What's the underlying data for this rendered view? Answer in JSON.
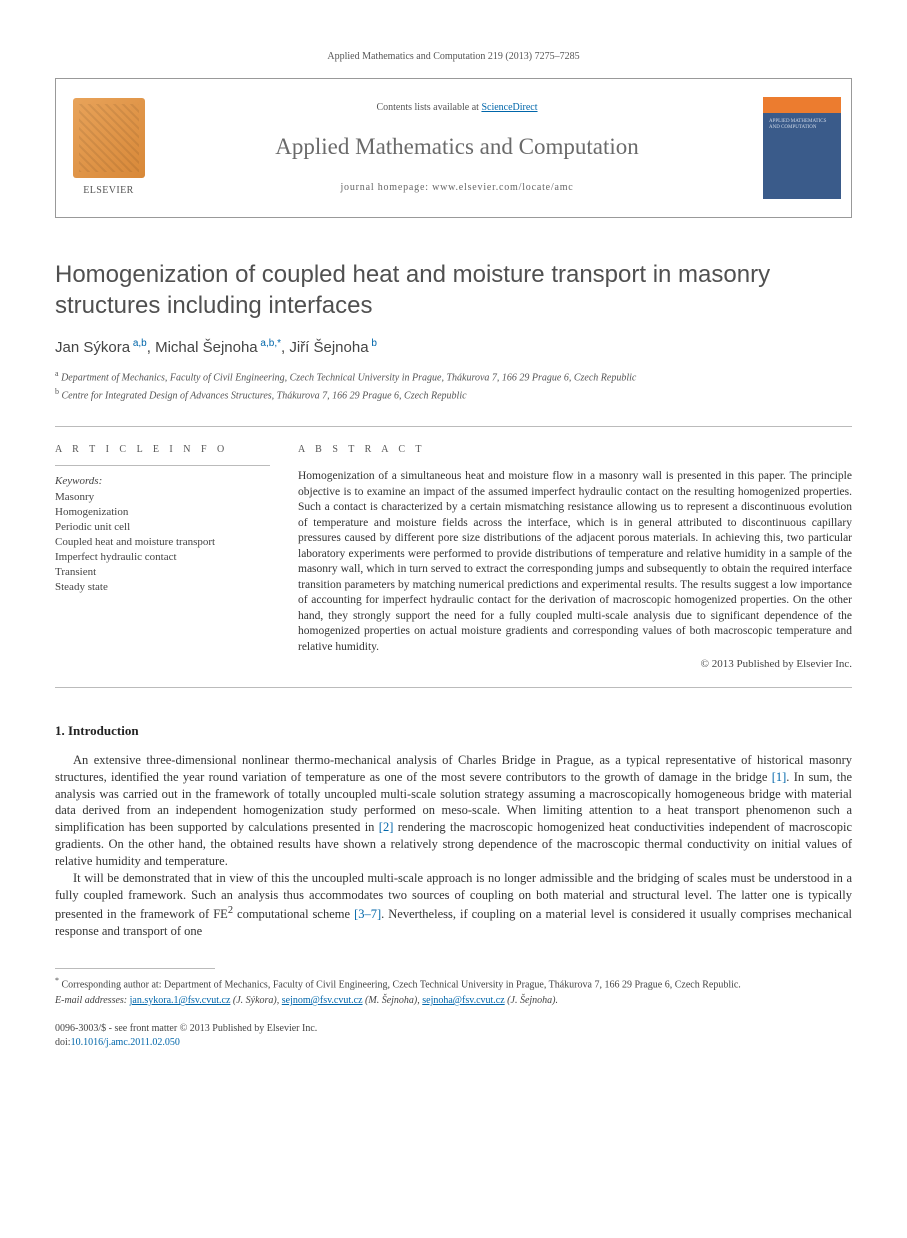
{
  "citation": "Applied Mathematics and Computation 219 (2013) 7275–7285",
  "header": {
    "contents_prefix": "Contents lists available at ",
    "contents_link": "ScienceDirect",
    "journal_title": "Applied Mathematics and Computation",
    "homepage_label": "journal homepage: www.elsevier.com/locate/amc",
    "publisher_label": "ELSEVIER",
    "cover_text": "APPLIED MATHEMATICS AND COMPUTATION"
  },
  "paper": {
    "title": "Homogenization of coupled heat and moisture transport in masonry structures including interfaces",
    "authors": [
      {
        "name": "Jan Sýkora",
        "affil": "a,b"
      },
      {
        "name": "Michal Šejnoha",
        "affil": "a,b,*"
      },
      {
        "name": "Jiří Šejnoha",
        "affil": "b"
      }
    ],
    "affiliations": [
      {
        "sup": "a",
        "text": "Department of Mechanics, Faculty of Civil Engineering, Czech Technical University in Prague, Thákurova 7, 166 29 Prague 6, Czech Republic"
      },
      {
        "sup": "b",
        "text": "Centre for Integrated Design of Advances Structures, Thákurova 7, 166 29 Prague 6, Czech Republic"
      }
    ]
  },
  "article_info": {
    "heading": "A R T I C L E   I N F O",
    "keywords_label": "Keywords:",
    "keywords": [
      "Masonry",
      "Homogenization",
      "Periodic unit cell",
      "Coupled heat and moisture transport",
      "Imperfect hydraulic contact",
      "Transient",
      "Steady state"
    ]
  },
  "abstract": {
    "heading": "A B S T R A C T",
    "text": "Homogenization of a simultaneous heat and moisture flow in a masonry wall is presented in this paper. The principle objective is to examine an impact of the assumed imperfect hydraulic contact on the resulting homogenized properties. Such a contact is characterized by a certain mismatching resistance allowing us to represent a discontinuous evolution of temperature and moisture fields across the interface, which is in general attributed to discontinuous capillary pressures caused by different pore size distributions of the adjacent porous materials. In achieving this, two particular laboratory experiments were performed to provide distributions of temperature and relative humidity in a sample of the masonry wall, which in turn served to extract the corresponding jumps and subsequently to obtain the required interface transition parameters by matching numerical predictions and experimental results. The results suggest a low importance of accounting for imperfect hydraulic contact for the derivation of macroscopic homogenized properties. On the other hand, they strongly support the need for a fully coupled multi-scale analysis due to significant dependence of the homogenized properties on actual moisture gradients and corresponding values of both macroscopic temperature and relative humidity.",
    "copyright": "© 2013 Published by Elsevier Inc."
  },
  "section1": {
    "heading": "1. Introduction",
    "para1_a": "An extensive three-dimensional nonlinear thermo-mechanical analysis of Charles Bridge in Prague, as a typical representative of historical masonry structures, identified the year round variation of temperature as one of the most severe contributors to the growth of damage in the bridge ",
    "ref1": "[1]",
    "para1_b": ". In sum, the analysis was carried out in the framework of totally uncoupled multi-scale solution strategy assuming a macroscopically homogeneous bridge with material data derived from an independent homogenization study performed on meso-scale. When limiting attention to a heat transport phenomenon such a simplification has been supported by calculations presented in ",
    "ref2": "[2]",
    "para1_c": " rendering the macroscopic homogenized heat conductivities independent of macroscopic gradients. On the other hand, the obtained results have shown a relatively strong dependence of the macroscopic thermal conductivity on initial values of relative humidity and temperature.",
    "para2_a": "It will be demonstrated that in view of this the uncoupled multi-scale approach is no longer admissible and the bridging of scales must be understood in a fully coupled framework. Such an analysis thus accommodates two sources of coupling on both material and structural level. The latter one is typically presented in the framework of FE",
    "para2_sup": "2",
    "para2_b": " computational scheme ",
    "ref3": "[3–7]",
    "para2_c": ". Nevertheless, if coupling on a material level is considered it usually comprises mechanical response and transport of one"
  },
  "footer": {
    "corr_star": "*",
    "corr_text": "Corresponding author at: Department of Mechanics, Faculty of Civil Engineering, Czech Technical University in Prague, Thákurova 7, 166 29 Prague 6, Czech Republic.",
    "email_label": "E-mail addresses: ",
    "emails": [
      {
        "addr": "jan.sykora.1@fsv.cvut.cz",
        "who": "(J. Sýkora)"
      },
      {
        "addr": "sejnom@fsv.cvut.cz",
        "who": "(M. Šejnoha)"
      },
      {
        "addr": "sejnoha@fsv.cvut.cz",
        "who": "(J. Šejnoha)"
      }
    ],
    "issn": "0096-3003/$ - see front matter © 2013 Published by Elsevier Inc.",
    "doi_label": "doi:",
    "doi": "10.1016/j.amc.2011.02.050"
  },
  "colors": {
    "link": "#0066aa",
    "elsevier_orange": "#e8a35a",
    "cover_blue": "#3a5b8a",
    "cover_orange": "#ec7c2f",
    "text_primary": "#333333",
    "text_muted": "#555555",
    "rule": "#bbbbbb"
  }
}
